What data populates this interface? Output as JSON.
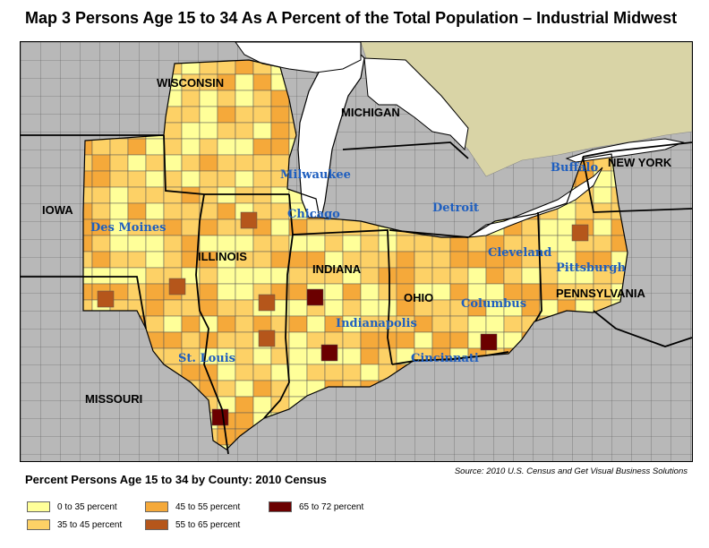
{
  "title": "Map 3   Persons Age 15 to 34 As A Percent of the Total Population – Industrial Midwest",
  "legend": {
    "title": "Percent Persons Age 15 to 34 by County: 2010 Census",
    "items": [
      {
        "label": "0 to 35 percent",
        "color": "#ffff99"
      },
      {
        "label": "35 to 45 percent",
        "color": "#fdd166"
      },
      {
        "label": "45 to 55 percent",
        "color": "#f5a93a"
      },
      {
        "label": "55 to 65 percent",
        "color": "#b5561b"
      },
      {
        "label": "65 to 72 percent",
        "color": "#6b0000"
      }
    ]
  },
  "source": "Source: 2010 U.S. Census and Get Visual Business Solutions",
  "states": [
    "WISCONSIN",
    "MICHIGAN",
    "NEW YORK",
    "IOWA",
    "ILLINOIS",
    "INDIANA",
    "OHIO",
    "PENNSYLVANIA",
    "MISSOURI"
  ],
  "cities": [
    "Milwaukee",
    "Buffalo",
    "Chicago",
    "Detroit",
    "Des Moines",
    "Cleveland",
    "Pittsburgh",
    "Columbus",
    "Indianapolis",
    "St. Louis",
    "Cincinnati"
  ],
  "colors": {
    "outside": "#b8b8b8",
    "lake": "#ffffff",
    "canada": "#d9d4a6",
    "county_border": "#555555",
    "state_border": "#000000"
  }
}
